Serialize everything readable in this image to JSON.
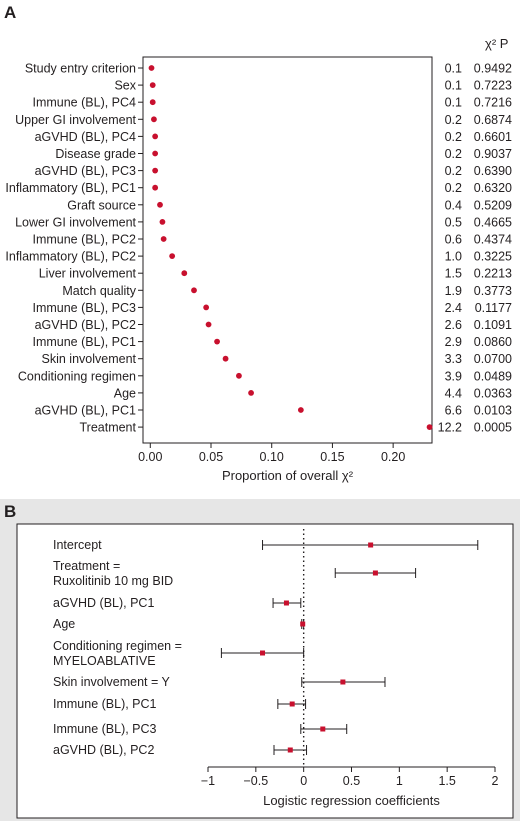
{
  "panel_a": {
    "label": "A",
    "chi_header": "χ² P"
  },
  "panel_b": {
    "label": "B"
  },
  "colors": {
    "marker": "#c8102e",
    "line": "#231f20"
  },
  "chart_data": [
    {
      "type": "scatter",
      "panel": "A",
      "xlabel": "Proportion of overall χ²",
      "xlim": [
        -0.006,
        0.232
      ],
      "xticks": [
        0.0,
        0.05,
        0.1,
        0.15,
        0.2
      ],
      "xtick_labels": [
        "0.00",
        "0.05",
        "0.10",
        "0.15",
        "0.20"
      ],
      "rows": [
        {
          "label": "Study entry criterion",
          "value": 0.001,
          "chi2": "0.1",
          "p": "0.9492"
        },
        {
          "label": "Sex",
          "value": 0.002,
          "chi2": "0.1",
          "p": "0.7223"
        },
        {
          "label": "Immune (BL), PC4",
          "value": 0.002,
          "chi2": "0.1",
          "p": "0.7216"
        },
        {
          "label": "Upper GI involvement",
          "value": 0.003,
          "chi2": "0.2",
          "p": "0.6874"
        },
        {
          "label": "aGVHD (BL), PC4",
          "value": 0.004,
          "chi2": "0.2",
          "p": "0.6601"
        },
        {
          "label": "Disease grade",
          "value": 0.004,
          "chi2": "0.2",
          "p": "0.9037"
        },
        {
          "label": "aGVHD (BL), PC3",
          "value": 0.004,
          "chi2": "0.2",
          "p": "0.6390"
        },
        {
          "label": "Inflammatory (BL), PC1",
          "value": 0.004,
          "chi2": "0.2",
          "p": "0.6320"
        },
        {
          "label": "Graft source",
          "value": 0.008,
          "chi2": "0.4",
          "p": "0.5209"
        },
        {
          "label": "Lower GI involvement",
          "value": 0.01,
          "chi2": "0.5",
          "p": "0.4665"
        },
        {
          "label": "Immune (BL), PC2",
          "value": 0.011,
          "chi2": "0.6",
          "p": "0.4374"
        },
        {
          "label": "Inflammatory (BL), PC2",
          "value": 0.018,
          "chi2": "1.0",
          "p": "0.3225"
        },
        {
          "label": "Liver involvement",
          "value": 0.028,
          "chi2": "1.5",
          "p": "0.2213"
        },
        {
          "label": "Match quality",
          "value": 0.036,
          "chi2": "1.9",
          "p": "0.3773"
        },
        {
          "label": "Immune (BL), PC3",
          "value": 0.046,
          "chi2": "2.4",
          "p": "0.1177"
        },
        {
          "label": "aGVHD (BL), PC2",
          "value": 0.048,
          "chi2": "2.6",
          "p": "0.1091"
        },
        {
          "label": "Immune (BL), PC1",
          "value": 0.055,
          "chi2": "2.9",
          "p": "0.0860"
        },
        {
          "label": "Skin involvement",
          "value": 0.062,
          "chi2": "3.3",
          "p": "0.0700"
        },
        {
          "label": "Conditioning regimen",
          "value": 0.073,
          "chi2": "3.9",
          "p": "0.0489"
        },
        {
          "label": "Age",
          "value": 0.083,
          "chi2": "4.4",
          "p": "0.0363"
        },
        {
          "label": "aGVHD (BL), PC1",
          "value": 0.124,
          "chi2": "6.6",
          "p": "0.0103"
        },
        {
          "label": "Treatment",
          "value": 0.23,
          "chi2": "12.2",
          "p": "0.0005"
        }
      ]
    },
    {
      "type": "forest",
      "panel": "B",
      "xlabel": "Logistic regression coefficients",
      "xlim": [
        -1.1,
        2.1
      ],
      "xticks": [
        -1,
        -0.5,
        0,
        0.5,
        1,
        1.5,
        2
      ],
      "xtick_labels": [
        "−1",
        "−0.5",
        "0",
        "0.5",
        "1",
        "1.5",
        "2"
      ],
      "reference_line": 0,
      "rows": [
        {
          "label": [
            "Intercept"
          ],
          "estimate": 0.7,
          "lower": -0.43,
          "upper": 1.82
        },
        {
          "label": [
            "Treatment =",
            "Ruxolitinib 10 mg BID"
          ],
          "estimate": 0.75,
          "lower": 0.33,
          "upper": 1.17
        },
        {
          "label": [
            "aGVHD (BL), PC1"
          ],
          "estimate": -0.18,
          "lower": -0.32,
          "upper": -0.03
        },
        {
          "label": [
            "Age"
          ],
          "estimate": -0.01,
          "lower": -0.02,
          "upper": 0.0
        },
        {
          "label": [
            "Conditioning regimen =",
            "MYELOABLATIVE"
          ],
          "estimate": -0.43,
          "lower": -0.86,
          "upper": 0.0
        },
        {
          "label": [
            "Skin involvement = Y"
          ],
          "estimate": 0.41,
          "lower": -0.02,
          "upper": 0.85
        },
        {
          "label": [
            "Immune (BL), PC1"
          ],
          "estimate": -0.12,
          "lower": -0.27,
          "upper": 0.02
        },
        {
          "label": [
            "Immune (BL), PC3"
          ],
          "estimate": 0.2,
          "lower": -0.03,
          "upper": 0.45
        },
        {
          "label": [
            "aGVHD (BL), PC2"
          ],
          "estimate": -0.14,
          "lower": -0.31,
          "upper": 0.03
        }
      ]
    }
  ]
}
